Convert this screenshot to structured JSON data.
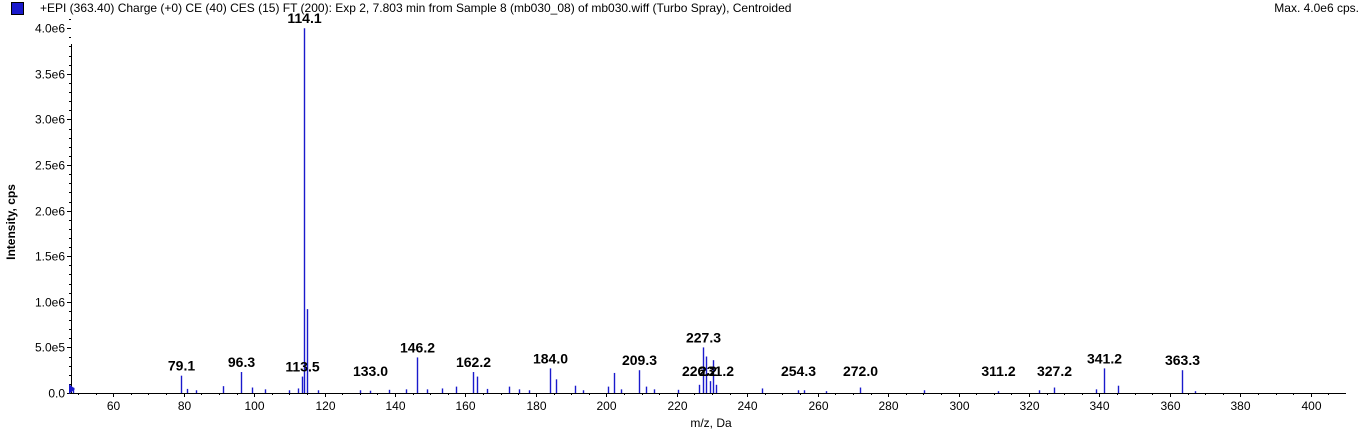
{
  "header": {
    "title": "+EPI (363.40) Charge (+0) CE (40) CES (15) FT (200): Exp 2, 7.803 min from Sample 8 (mb030_08) of mb030.wiff (Turbo Spray), Centroided",
    "max_label": "Max. 4.0e6 cps.",
    "swatch_color": "#1a1acc"
  },
  "chart_data": {
    "type": "bar",
    "xlabel": "m/z, Da",
    "ylabel": "Intensity, cps",
    "xlim": [
      48,
      410
    ],
    "ylim": [
      0,
      4200000
    ],
    "grid": false,
    "bar_color": "#1a1acc",
    "x_ticks": [
      {
        "value": 60,
        "label": "60"
      },
      {
        "value": 80,
        "label": "80"
      },
      {
        "value": 100,
        "label": "100"
      },
      {
        "value": 120,
        "label": "120"
      },
      {
        "value": 140,
        "label": "140"
      },
      {
        "value": 160,
        "label": "160"
      },
      {
        "value": 180,
        "label": "180"
      },
      {
        "value": 200,
        "label": "200"
      },
      {
        "value": 220,
        "label": "220"
      },
      {
        "value": 240,
        "label": "240"
      },
      {
        "value": 260,
        "label": "260"
      },
      {
        "value": 280,
        "label": "280"
      },
      {
        "value": 300,
        "label": "300"
      },
      {
        "value": 320,
        "label": "320"
      },
      {
        "value": 340,
        "label": "340"
      },
      {
        "value": 360,
        "label": "360"
      },
      {
        "value": 380,
        "label": "380"
      },
      {
        "value": 400,
        "label": "400"
      }
    ],
    "y_ticks": [
      {
        "value": 0,
        "label": "0.0"
      },
      {
        "value": 500000,
        "label": "5.0e5"
      },
      {
        "value": 1000000,
        "label": "1.0e6"
      },
      {
        "value": 1500000,
        "label": "1.5e6"
      },
      {
        "value": 2000000,
        "label": "2.0e6"
      },
      {
        "value": 2500000,
        "label": "2.5e6"
      },
      {
        "value": 3000000,
        "label": "3.0e6"
      },
      {
        "value": 3500000,
        "label": "3.5e6"
      },
      {
        "value": 4000000,
        "label": "4.0e6"
      }
    ],
    "peaks": [
      {
        "mz": 48.5,
        "intensity": 60000
      },
      {
        "mz": 79.1,
        "intensity": 190000,
        "label": "79.1"
      },
      {
        "mz": 80.8,
        "intensity": 45000
      },
      {
        "mz": 83.5,
        "intensity": 30000
      },
      {
        "mz": 91.2,
        "intensity": 75000
      },
      {
        "mz": 96.3,
        "intensity": 230000,
        "label": "96.3"
      },
      {
        "mz": 99.5,
        "intensity": 60000
      },
      {
        "mz": 103.2,
        "intensity": 40000
      },
      {
        "mz": 110.0,
        "intensity": 30000
      },
      {
        "mz": 112.4,
        "intensity": 50000
      },
      {
        "mz": 113.5,
        "intensity": 180000,
        "label": "113.5"
      },
      {
        "mz": 114.1,
        "intensity": 4000000,
        "label": "114.1"
      },
      {
        "mz": 115.1,
        "intensity": 920000
      },
      {
        "mz": 118.2,
        "intensity": 30000
      },
      {
        "mz": 130.1,
        "intensity": 30000
      },
      {
        "mz": 133.0,
        "intensity": 25000,
        "label": "133.0"
      },
      {
        "mz": 138.3,
        "intensity": 35000
      },
      {
        "mz": 143.2,
        "intensity": 40000
      },
      {
        "mz": 146.2,
        "intensity": 390000,
        "label": "146.2"
      },
      {
        "mz": 149.1,
        "intensity": 40000
      },
      {
        "mz": 153.2,
        "intensity": 50000
      },
      {
        "mz": 157.3,
        "intensity": 70000
      },
      {
        "mz": 162.2,
        "intensity": 230000,
        "label": "162.2"
      },
      {
        "mz": 163.3,
        "intensity": 180000
      },
      {
        "mz": 166.2,
        "intensity": 45000
      },
      {
        "mz": 172.3,
        "intensity": 70000
      },
      {
        "mz": 175.2,
        "intensity": 40000
      },
      {
        "mz": 178.1,
        "intensity": 30000
      },
      {
        "mz": 184.0,
        "intensity": 270000,
        "label": "184.0"
      },
      {
        "mz": 185.8,
        "intensity": 150000
      },
      {
        "mz": 191.2,
        "intensity": 80000
      },
      {
        "mz": 193.3,
        "intensity": 30000
      },
      {
        "mz": 200.5,
        "intensity": 70000
      },
      {
        "mz": 202.2,
        "intensity": 220000
      },
      {
        "mz": 204.1,
        "intensity": 40000
      },
      {
        "mz": 209.3,
        "intensity": 250000,
        "label": "209.3"
      },
      {
        "mz": 211.2,
        "intensity": 70000
      },
      {
        "mz": 213.4,
        "intensity": 40000
      },
      {
        "mz": 220.3,
        "intensity": 35000
      },
      {
        "mz": 226.2,
        "intensity": 90000,
        "label": "226.2"
      },
      {
        "mz": 227.3,
        "intensity": 500000,
        "label": "227.3"
      },
      {
        "mz": 228.2,
        "intensity": 400000
      },
      {
        "mz": 229.5,
        "intensity": 130000
      },
      {
        "mz": 230.3,
        "intensity": 360000
      },
      {
        "mz": 231.2,
        "intensity": 90000,
        "label": "231.2"
      },
      {
        "mz": 244.3,
        "intensity": 50000
      },
      {
        "mz": 254.3,
        "intensity": 30000,
        "label": "254.3"
      },
      {
        "mz": 256.2,
        "intensity": 30000
      },
      {
        "mz": 262.4,
        "intensity": 20000
      },
      {
        "mz": 272.0,
        "intensity": 60000,
        "label": "272.0"
      },
      {
        "mz": 290.2,
        "intensity": 30000
      },
      {
        "mz": 311.2,
        "intensity": 20000,
        "label": "311.2"
      },
      {
        "mz": 322.8,
        "intensity": 30000
      },
      {
        "mz": 327.2,
        "intensity": 60000,
        "label": "327.2"
      },
      {
        "mz": 338.9,
        "intensity": 40000
      },
      {
        "mz": 341.2,
        "intensity": 270000,
        "label": "341.2"
      },
      {
        "mz": 345.3,
        "intensity": 80000
      },
      {
        "mz": 363.3,
        "intensity": 250000,
        "label": "363.3"
      },
      {
        "mz": 367.2,
        "intensity": 20000
      }
    ]
  }
}
